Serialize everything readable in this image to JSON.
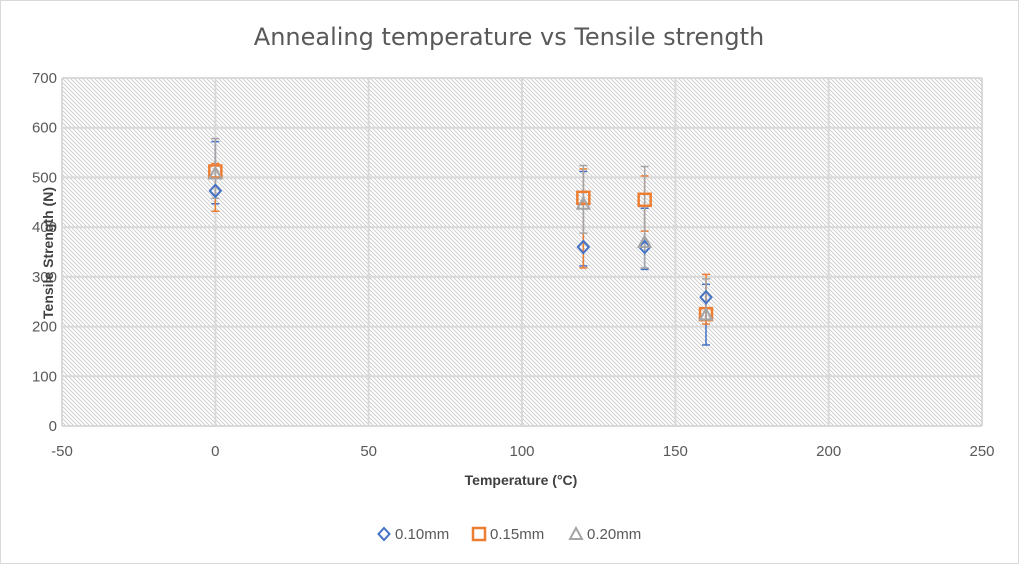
{
  "chart_data": {
    "type": "scatter",
    "title": "Annealing temperature vs Tensile strength",
    "xlabel": "Temperature (°C)",
    "ylabel": "Tensile Strength (N)",
    "xlim": [
      -50,
      250
    ],
    "ylim": [
      0,
      700
    ],
    "xticks": [
      -50,
      0,
      50,
      100,
      150,
      200,
      250
    ],
    "yticks": [
      0,
      100,
      200,
      300,
      400,
      500,
      600,
      700
    ],
    "grid": true,
    "legend_position": "bottom",
    "series": [
      {
        "name": "0.10mm",
        "marker": "diamond",
        "color": "#4472c4",
        "x": [
          0,
          120,
          140,
          160
        ],
        "y": [
          473,
          360,
          360,
          259
        ],
        "err_low": [
          447,
          322,
          315,
          163
        ],
        "err_high": [
          572,
          512,
          438,
          285
        ]
      },
      {
        "name": "0.15mm",
        "marker": "square",
        "color": "#ed7d31",
        "x": [
          0,
          120,
          140,
          160
        ],
        "y": [
          512,
          459,
          455,
          225
        ],
        "err_low": [
          432,
          318,
          392,
          205
        ],
        "err_high": [
          528,
          517,
          503,
          305
        ]
      },
      {
        "name": "0.20mm",
        "marker": "triangle",
        "color": "#a5a5a5",
        "x": [
          0,
          120,
          140,
          160
        ],
        "y": [
          508,
          447,
          370,
          224
        ],
        "err_low": [
          458,
          388,
          318,
          215
        ],
        "err_high": [
          578,
          524,
          522,
          296
        ]
      }
    ]
  }
}
